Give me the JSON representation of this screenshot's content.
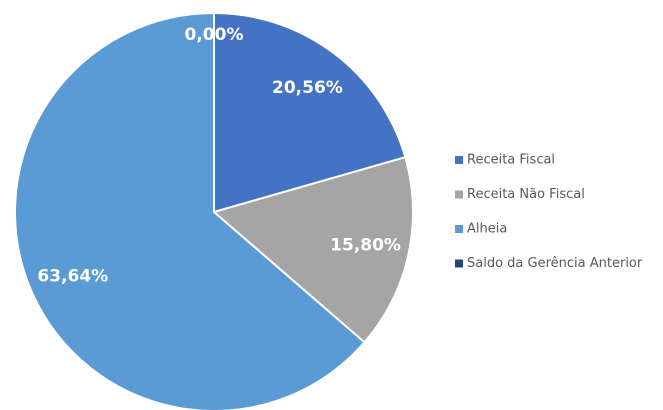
{
  "chart_data": {
    "type": "pie",
    "categories": [
      "Receita Fiscal",
      "Receita Não Fiscal",
      "Alheia",
      "Saldo da Gerência Anterior"
    ],
    "values": [
      20.56,
      15.8,
      63.64,
      0.0
    ],
    "value_labels": [
      "20,56%",
      "15,80%",
      "63,64%",
      "0,00%"
    ],
    "colors": [
      "#4472c4",
      "#a5a5a5",
      "#5b9bd5",
      "#264478"
    ],
    "legend": "right"
  }
}
